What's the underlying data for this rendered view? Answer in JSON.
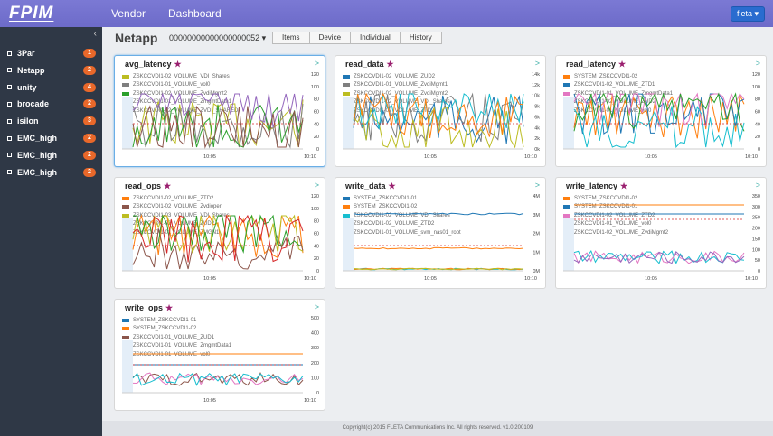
{
  "header": {
    "logo": "FPIM",
    "nav": [
      "Vendor",
      "Dashboard"
    ],
    "user": "fleta ▾"
  },
  "sidebar": {
    "collapse": "‹",
    "items": [
      {
        "label": "3Par",
        "count": "1"
      },
      {
        "label": "Netapp",
        "count": "2"
      },
      {
        "label": "unity",
        "count": "4"
      },
      {
        "label": "brocade",
        "count": "2"
      },
      {
        "label": "isilon",
        "count": "3"
      },
      {
        "label": "EMC_high",
        "count": "2"
      },
      {
        "label": "EMC_high",
        "count": "2"
      },
      {
        "label": "EMC_high",
        "count": "2"
      }
    ]
  },
  "page": {
    "title": "Netapp",
    "serial": "00000000000000000052 ▾",
    "tabs": [
      "Items",
      "Device",
      "Individual",
      "History"
    ]
  },
  "colors": {
    "blue": "#1f77b4",
    "orange": "#ff7f0e",
    "green": "#2ca02c",
    "red": "#d62728",
    "purple": "#9467bd",
    "brown": "#8c564b",
    "pink": "#e377c2",
    "gray": "#7f7f7f",
    "olive": "#bcbd22",
    "cyan": "#17becf"
  },
  "panels": [
    {
      "title": "avg_latency",
      "legend": [
        {
          "label": "ZSKCCVDI1-02_VOLUME_VDI_Shares",
          "color": "#bcbd22"
        },
        {
          "label": "ZSKCCVDI1-01_VOLUME_vol0",
          "color": "#7f7f7f"
        },
        {
          "label": "ZSKCCVDI1-02_VOLUME_ZvdiMgmt2",
          "color": "#2ca02c"
        },
        {
          "label": "ZSKCCVDI1-01_VOLUME_ZmgmtData1",
          "color": "#9467bd"
        },
        {
          "label": "ZSKCCVDI1-02_VOLUME_ZVDI_SHARED",
          "color": "#8c564b"
        }
      ],
      "yticks": [
        "120",
        "100",
        "80",
        "60",
        "40",
        "20",
        "0"
      ],
      "xticks": [
        "10:05",
        "10:10"
      ]
    },
    {
      "title": "read_data",
      "legend": [
        {
          "label": "ZSKCCVDI1-02_VOLUME_ZUD2",
          "color": "#1f77b4"
        },
        {
          "label": "ZSKCCVDI1-01_VOLUME_ZvdiMgmt1",
          "color": "#7f7f7f"
        },
        {
          "label": "ZSKCCVDI1-02_VOLUME_ZvdiMgmt2",
          "color": "#bcbd22"
        },
        {
          "label": "ZSKCCVDI1-02_VOLUME_VDI_Shares",
          "color": "#17becf"
        },
        {
          "label": "ZSKCCVDI1-02_VOLUME_ZTD2",
          "color": "#ff7f0e"
        }
      ],
      "yticks": [
        "14k",
        "12k",
        "10k",
        "8k",
        "6k",
        "4k",
        "2k",
        "0k"
      ],
      "xticks": [
        "10:05",
        "10:10"
      ]
    },
    {
      "title": "read_latency",
      "legend": [
        {
          "label": "SYSTEM_ZSKCCVDI1-02",
          "color": "#ff7f0e"
        },
        {
          "label": "ZSKCCVDI1-02_VOLUME_ZTD1",
          "color": "#1f77b4"
        },
        {
          "label": "ZSKCCVDI1-01_VOLUME_ZmgmtData1",
          "color": "#e377c2"
        },
        {
          "label": "ZSKCCVDI1-02_VOLUME_ZUD2",
          "color": "#2ca02c"
        },
        {
          "label": "ZSKCCVDI1-01_VOLUME_vol0",
          "color": "#17becf"
        }
      ],
      "yticks": [
        "120",
        "100",
        "80",
        "60",
        "40",
        "20",
        "0"
      ],
      "xticks": [
        "10:05",
        "10:10"
      ]
    },
    {
      "title": "read_ops",
      "legend": [
        {
          "label": "ZSKCCVDI1-02_VOLUME_ZTD2",
          "color": "#ff7f0e"
        },
        {
          "label": "ZSKCCVDI1-02_VOLUME_Zvdioper",
          "color": "#8c564b"
        },
        {
          "label": "ZSKCCVDI1-03_VOLUME_VDI_Shares",
          "color": "#bcbd22"
        },
        {
          "label": "ZSKCCVDI1-02_VOLUME_ZUD2",
          "color": "#2ca02c"
        },
        {
          "label": "ZSKCCVDI1-01_VOLUME_ZMGN1",
          "color": "#d62728"
        }
      ],
      "yticks": [
        "120",
        "100",
        "80",
        "60",
        "40",
        "20",
        "0"
      ],
      "xticks": [
        "10:05",
        "10:10"
      ]
    },
    {
      "title": "write_data",
      "legend": [
        {
          "label": "SYSTEM_ZSKCCVDI1-01",
          "color": "#1f77b4"
        },
        {
          "label": "SYSTEM_ZSKCCVDI1-02",
          "color": "#ff7f0e"
        },
        {
          "label": "ZSKCCVDI1-02_VOLUME_VDI_Shares",
          "color": "#17becf"
        },
        {
          "label": "ZSKCCVDI1-02_VOLUME_ZTD2",
          "color": "#ff7f0e"
        },
        {
          "label": "ZSKCCVDI1-01_VOLUME_svm_nas01_root",
          "color": "#bcbd22"
        }
      ],
      "yticks": [
        "4M",
        "3M",
        "2M",
        "1M",
        "0M"
      ],
      "xticks": [
        "10:05",
        "10:10"
      ]
    },
    {
      "title": "write_latency",
      "legend": [
        {
          "label": "SYSTEM_ZSKCCVDI1-02",
          "color": "#ff7f0e"
        },
        {
          "label": "SYSTEM_ZSKCCVDI1-01",
          "color": "#1f77b4"
        },
        {
          "label": "ZSKCCVDI1-02_VOLUME_ZTD2",
          "color": "#e377c2"
        },
        {
          "label": "ZSKCCVDI1-01_VOLUME_vol0",
          "color": "#17becf"
        },
        {
          "label": "ZSKCCVDI1-02_VOLUME_ZvdiMgmt2",
          "color": "#9467bd"
        }
      ],
      "yticks": [
        "350",
        "300",
        "250",
        "200",
        "150",
        "100",
        "50",
        "0"
      ],
      "xticks": [
        "10:05",
        "10:10"
      ]
    },
    {
      "title": "write_ops",
      "legend": [
        {
          "label": "SYSTEM_ZSKCCVDI1-01",
          "color": "#1f77b4"
        },
        {
          "label": "SYSTEM_ZSKCCVDI1-02",
          "color": "#ff7f0e"
        },
        {
          "label": "ZSKCCVDI1-01_VOLUME_ZUD1",
          "color": "#8c564b"
        },
        {
          "label": "ZSKCCVDI1-01_VOLUME_ZmgmtData1",
          "color": "#e377c2"
        },
        {
          "label": "ZSKCCVDI1-01_VOLUME_vol0",
          "color": "#17becf"
        }
      ],
      "yticks": [
        "500",
        "400",
        "300",
        "200",
        "100",
        "0"
      ],
      "xticks": [
        "10:05",
        "10:10"
      ]
    }
  ],
  "footer": "Copyright(c) 2015 FLETA Communications Inc. All rights reserved. v1.0.200109"
}
